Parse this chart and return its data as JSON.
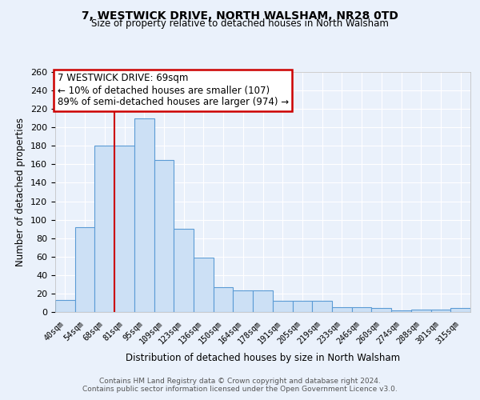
{
  "title": "7, WESTWICK DRIVE, NORTH WALSHAM, NR28 0TD",
  "subtitle": "Size of property relative to detached houses in North Walsham",
  "xlabel": "Distribution of detached houses by size in North Walsham",
  "ylabel": "Number of detached properties",
  "bin_labels": [
    "40sqm",
    "54sqm",
    "68sqm",
    "81sqm",
    "95sqm",
    "109sqm",
    "123sqm",
    "136sqm",
    "150sqm",
    "164sqm",
    "178sqm",
    "191sqm",
    "205sqm",
    "219sqm",
    "233sqm",
    "246sqm",
    "260sqm",
    "274sqm",
    "288sqm",
    "301sqm",
    "315sqm"
  ],
  "bar_values": [
    13,
    92,
    180,
    180,
    210,
    165,
    90,
    59,
    27,
    23,
    23,
    12,
    12,
    12,
    5,
    5,
    4,
    2,
    3,
    3,
    4
  ],
  "bar_color": "#cce0f5",
  "bar_edge_color": "#5b9bd5",
  "bar_edge_width": 0.8,
  "vline_x": 2.5,
  "vline_color": "#cc0000",
  "annotation_box_text": "7 WESTWICK DRIVE: 69sqm\n← 10% of detached houses are smaller (107)\n89% of semi-detached houses are larger (974) →",
  "ylim": [
    0,
    260
  ],
  "yticks": [
    0,
    20,
    40,
    60,
    80,
    100,
    120,
    140,
    160,
    180,
    200,
    220,
    240,
    260
  ],
  "bg_color": "#eaf1fb",
  "plot_bg_color": "#eaf1fb",
  "grid_color": "#ffffff",
  "footer_line1": "Contains HM Land Registry data © Crown copyright and database right 2024.",
  "footer_line2": "Contains public sector information licensed under the Open Government Licence v3.0."
}
